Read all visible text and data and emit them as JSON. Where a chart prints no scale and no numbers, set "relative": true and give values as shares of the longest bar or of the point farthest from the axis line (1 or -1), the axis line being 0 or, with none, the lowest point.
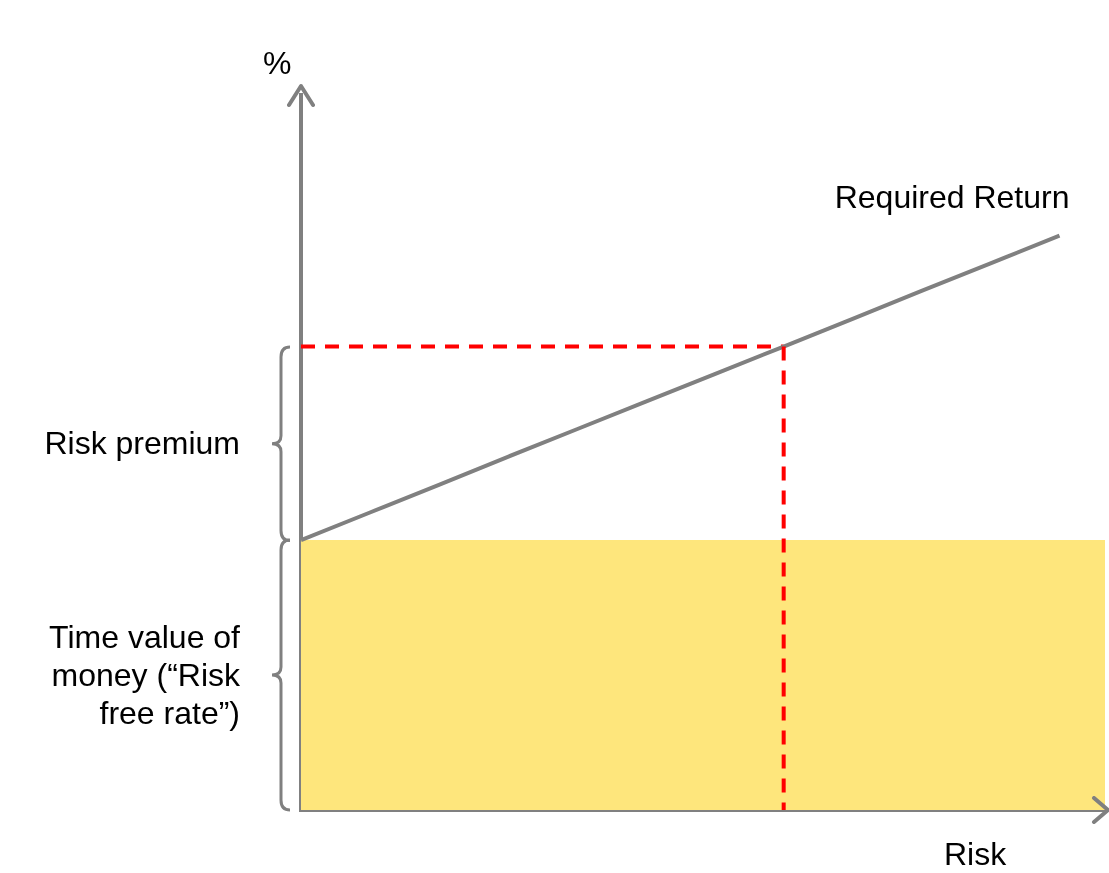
{
  "chart_data": {
    "type": "line",
    "relative": true,
    "ylabel": "%",
    "xlabel": "Risk",
    "grid": false,
    "legend": false,
    "marker": "none",
    "tick_labels": false,
    "categories": [
      null,
      null,
      null,
      null,
      null,
      null,
      null,
      null,
      null,
      null,
      null,
      null
    ],
    "annotations": [
      "Risk premium",
      "Time value of money (“Risk free rate”)"
    ],
    "bands": [
      {
        "axis": "y",
        "from": 0,
        "to": 0.47,
        "color": "#fee67c"
      }
    ],
    "series": [
      {
        "name": "Required Return",
        "color": "#808080",
        "values": [
          0.47,
          0.518,
          0.566,
          0.615,
          0.663,
          0.711,
          0.759,
          0.807,
          0.855,
          0.904,
          0.952,
          1
        ],
        "line_style": "solid"
      },
      {
        "color": "#ff0000",
        "values": [
          0.807,
          0.807,
          0.807,
          0.807,
          0.807,
          0.807,
          0.807,
          0.807,
          null,
          null,
          null,
          null
        ],
        "line_style": "dashed"
      }
    ]
  }
}
